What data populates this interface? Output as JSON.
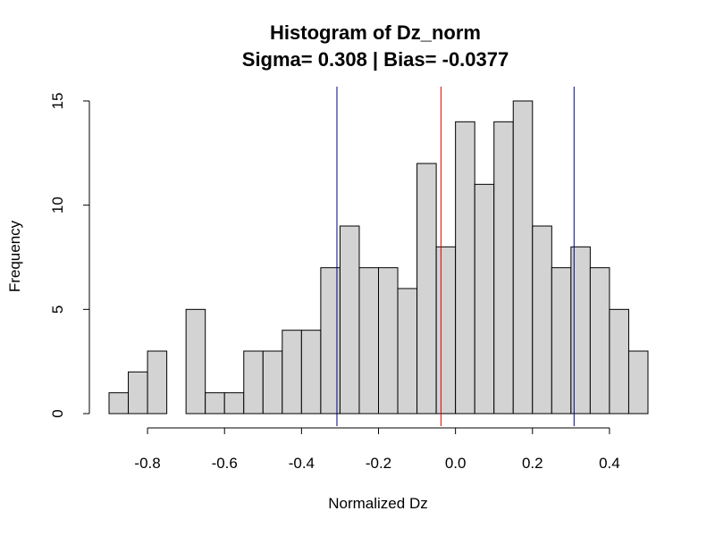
{
  "chart_data": {
    "type": "bar",
    "title": "Histogram of Dz_norm",
    "subtitle": "Sigma= 0.308 | Bias= -0.0377",
    "xlabel": "Normalized Dz",
    "ylabel": "Frequency",
    "bin_width": 0.05,
    "bins": [
      {
        "x0": -0.9,
        "x1": -0.85,
        "count": 1
      },
      {
        "x0": -0.85,
        "x1": -0.8,
        "count": 2
      },
      {
        "x0": -0.8,
        "x1": -0.75,
        "count": 3
      },
      {
        "x0": -0.75,
        "x1": -0.7,
        "count": 0
      },
      {
        "x0": -0.7,
        "x1": -0.65,
        "count": 5
      },
      {
        "x0": -0.65,
        "x1": -0.6,
        "count": 1
      },
      {
        "x0": -0.6,
        "x1": -0.55,
        "count": 1
      },
      {
        "x0": -0.55,
        "x1": -0.5,
        "count": 3
      },
      {
        "x0": -0.5,
        "x1": -0.45,
        "count": 3
      },
      {
        "x0": -0.45,
        "x1": -0.4,
        "count": 4
      },
      {
        "x0": -0.4,
        "x1": -0.35,
        "count": 4
      },
      {
        "x0": -0.35,
        "x1": -0.3,
        "count": 7
      },
      {
        "x0": -0.3,
        "x1": -0.25,
        "count": 9
      },
      {
        "x0": -0.25,
        "x1": -0.2,
        "count": 7
      },
      {
        "x0": -0.2,
        "x1": -0.15,
        "count": 7
      },
      {
        "x0": -0.15,
        "x1": -0.1,
        "count": 6
      },
      {
        "x0": -0.1,
        "x1": -0.05,
        "count": 12
      },
      {
        "x0": -0.05,
        "x1": 0.0,
        "count": 8
      },
      {
        "x0": 0.0,
        "x1": 0.05,
        "count": 14
      },
      {
        "x0": 0.05,
        "x1": 0.1,
        "count": 11
      },
      {
        "x0": 0.1,
        "x1": 0.15,
        "count": 14
      },
      {
        "x0": 0.15,
        "x1": 0.2,
        "count": 15
      },
      {
        "x0": 0.2,
        "x1": 0.25,
        "count": 9
      },
      {
        "x0": 0.25,
        "x1": 0.3,
        "count": 7
      },
      {
        "x0": 0.3,
        "x1": 0.35,
        "count": 8
      },
      {
        "x0": 0.35,
        "x1": 0.4,
        "count": 7
      },
      {
        "x0": 0.4,
        "x1": 0.45,
        "count": 5
      },
      {
        "x0": 0.45,
        "x1": 0.5,
        "count": 3
      }
    ],
    "xlim": [
      -0.9,
      0.5
    ],
    "ylim": [
      0,
      15
    ],
    "x_ticks": [
      -0.8,
      -0.6,
      -0.4,
      -0.2,
      0.0,
      0.2,
      0.4
    ],
    "x_tick_labels": [
      "-0.8",
      "-0.6",
      "-0.4",
      "-0.2",
      "0.0",
      "0.2",
      "0.4"
    ],
    "y_ticks": [
      0,
      5,
      10,
      15
    ],
    "y_tick_labels": [
      "0",
      "5",
      "10",
      "15"
    ],
    "grid": false,
    "bar_fill": "#d3d3d3",
    "bar_stroke": "#000000",
    "reference_lines": [
      {
        "x": -0.308,
        "color": "#00008b"
      },
      {
        "x": -0.0377,
        "color": "#dd0000"
      },
      {
        "x": 0.308,
        "color": "#00008b"
      }
    ]
  }
}
